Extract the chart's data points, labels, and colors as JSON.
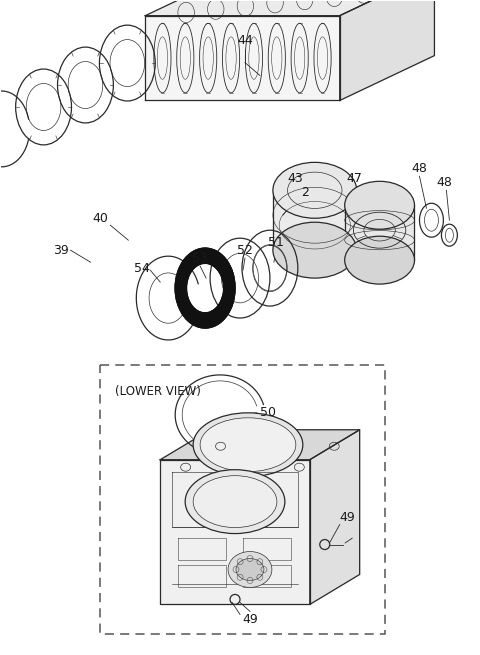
{
  "bg_color": "#ffffff",
  "line_color": "#2a2a2a",
  "label_color": "#1a1a1a",
  "fig_width": 4.8,
  "fig_height": 6.55,
  "dpi": 100
}
